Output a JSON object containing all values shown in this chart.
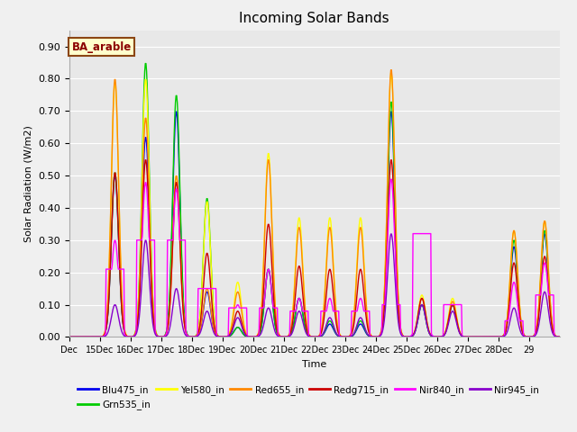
{
  "title": "Incoming Solar Bands",
  "xlabel": "Time",
  "ylabel": "Solar Radiation (W/m2)",
  "annotation": "BA_arable",
  "ylim": [
    0.0,
    0.95
  ],
  "yticks": [
    0.0,
    0.1,
    0.2,
    0.3,
    0.4,
    0.5,
    0.6,
    0.7,
    0.8,
    0.9
  ],
  "x_tick_labels": [
    "Dec",
    "15Dec",
    "16Dec",
    "17Dec",
    "18Dec",
    "19Dec",
    "20Dec",
    "21Dec",
    "22Dec",
    "23Dec",
    "24Dec",
    "25Dec",
    "26Dec",
    "27Dec",
    "28Dec",
    "29"
  ],
  "series_order": [
    "Blu475_in",
    "Grn535_in",
    "Yel580_in",
    "Red655_in",
    "Redg715_in",
    "Nir840_in",
    "Nir945_in"
  ],
  "series_colors": {
    "Blu475_in": "#0000ee",
    "Grn535_in": "#00cc00",
    "Yel580_in": "#ffff00",
    "Red655_in": "#ff8800",
    "Redg715_in": "#cc0000",
    "Nir840_in": "#ff00ff",
    "Nir945_in": "#8800cc"
  },
  "linewidth": 1.0,
  "fig_bg": "#f0f0f0",
  "plot_bg": "#e8e8e8",
  "grid_color": "#ffffff",
  "n_days": 16,
  "pts_per_day": 50,
  "sigma": 0.12,
  "day_peaks": {
    "Blu475_in": [
      0.0,
      0.5,
      0.62,
      0.7,
      0.14,
      0.03,
      0.21,
      0.12,
      0.04,
      0.04,
      0.7,
      0.1,
      0.1,
      0.0,
      0.28,
      0.32
    ],
    "Grn535_in": [
      0.0,
      0.51,
      0.85,
      0.75,
      0.43,
      0.03,
      0.21,
      0.12,
      0.05,
      0.05,
      0.73,
      0.1,
      0.1,
      0.0,
      0.3,
      0.33
    ],
    "Yel580_in": [
      0.0,
      0.79,
      0.8,
      0.5,
      0.42,
      0.17,
      0.57,
      0.37,
      0.37,
      0.37,
      0.82,
      0.13,
      0.12,
      0.0,
      0.33,
      0.36
    ],
    "Red655_in": [
      0.0,
      0.8,
      0.68,
      0.5,
      0.15,
      0.14,
      0.55,
      0.34,
      0.34,
      0.34,
      0.83,
      0.12,
      0.11,
      0.0,
      0.33,
      0.36
    ],
    "Redg715_in": [
      0.0,
      0.51,
      0.55,
      0.48,
      0.26,
      0.08,
      0.35,
      0.22,
      0.21,
      0.21,
      0.55,
      0.12,
      0.1,
      0.0,
      0.23,
      0.25
    ],
    "Nir840_in": [
      0.0,
      0.3,
      0.48,
      0.46,
      0.15,
      0.1,
      0.21,
      0.12,
      0.12,
      0.12,
      0.49,
      0.32,
      0.1,
      0.0,
      0.17,
      0.23
    ],
    "Nir945_in": [
      0.0,
      0.1,
      0.3,
      0.15,
      0.08,
      0.06,
      0.09,
      0.08,
      0.06,
      0.06,
      0.32,
      0.1,
      0.08,
      0.0,
      0.09,
      0.14
    ]
  },
  "nir840_plateau": [
    0.0,
    0.21,
    0.3,
    0.3,
    0.15,
    0.09,
    0.09,
    0.08,
    0.08,
    0.08,
    0.1,
    0.32,
    0.1,
    0.0,
    0.05,
    0.13
  ]
}
